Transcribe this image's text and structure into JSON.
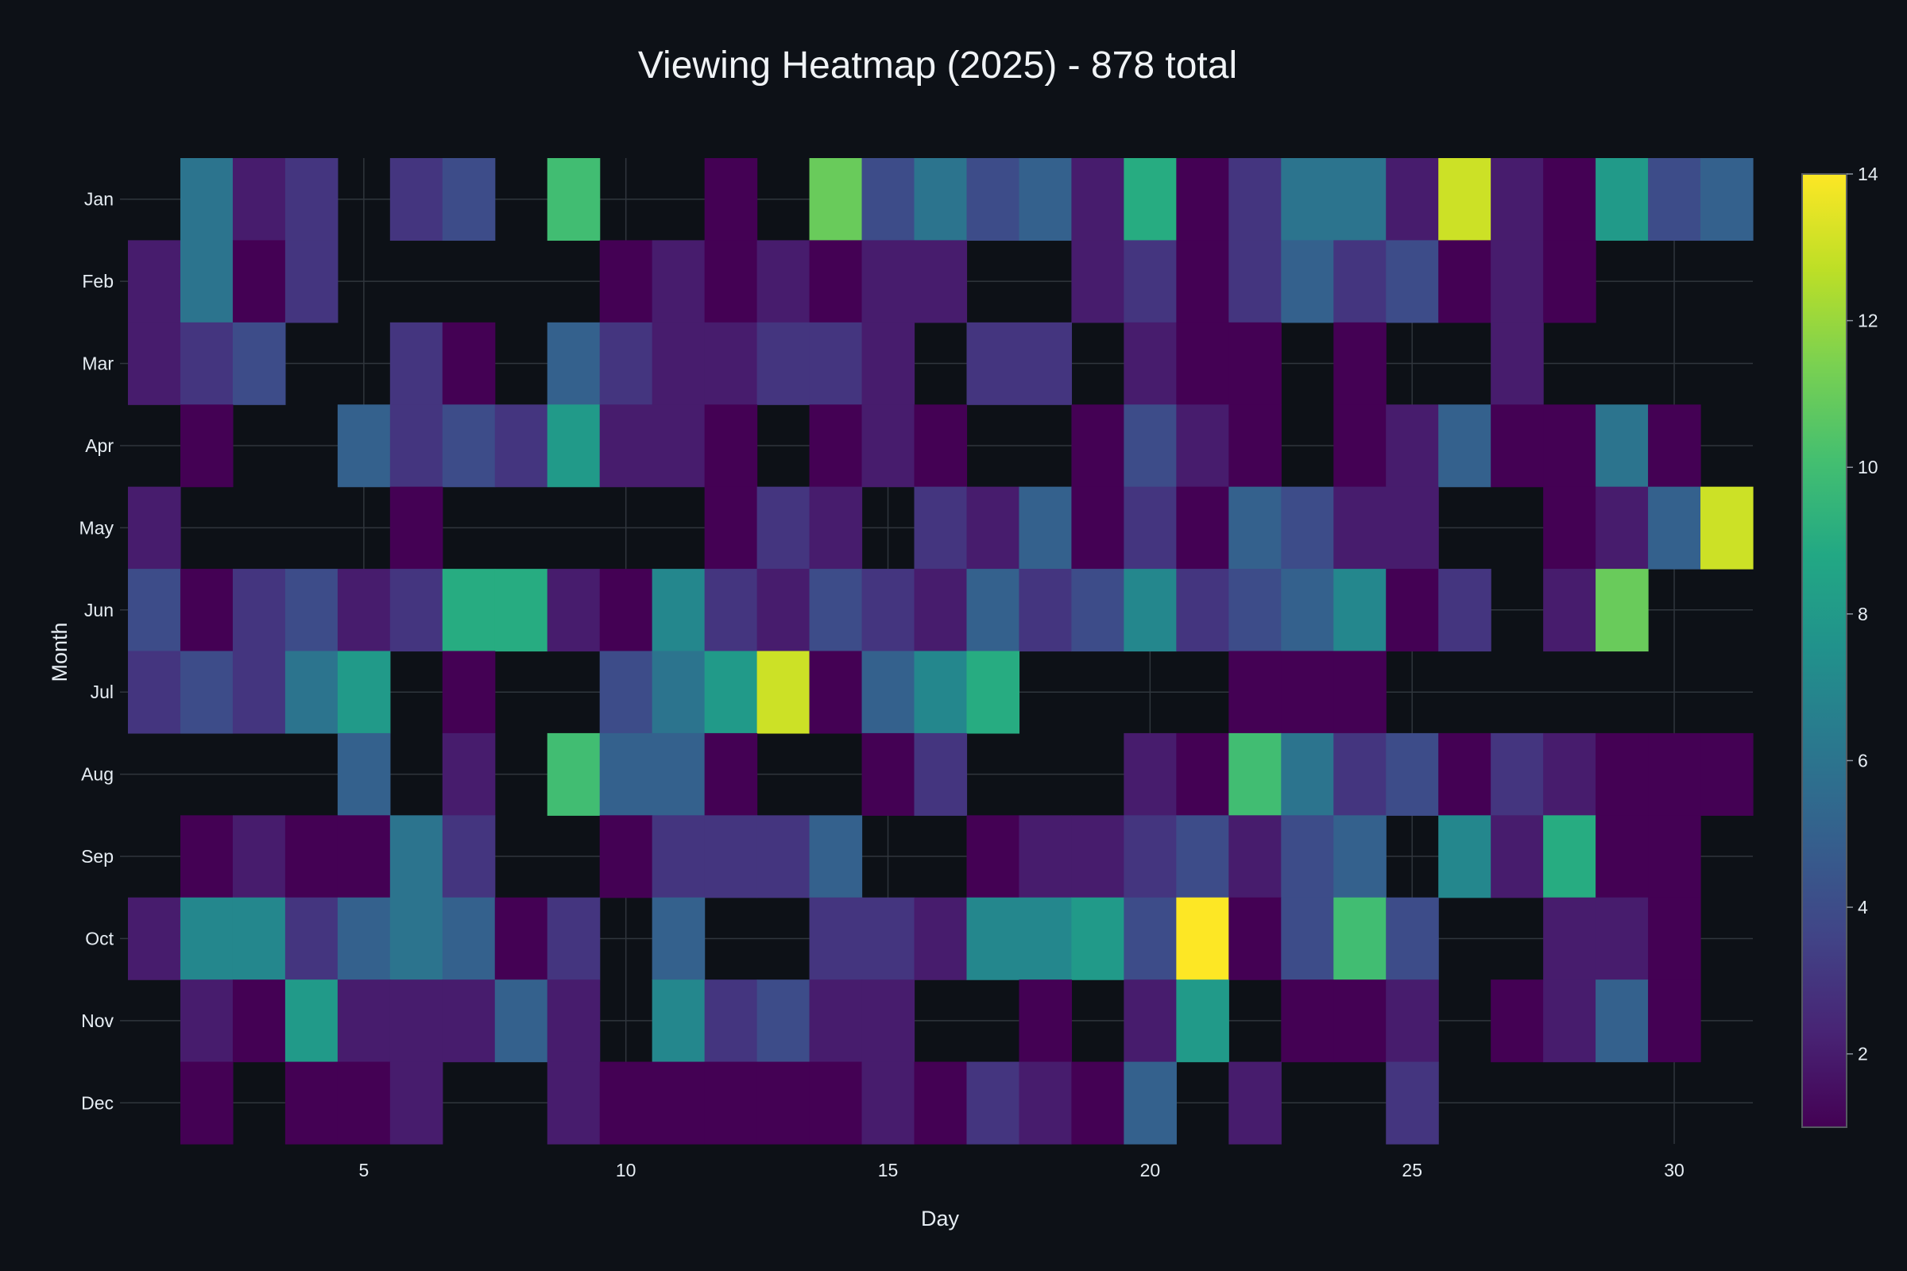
{
  "chart_data": {
    "type": "heatmap",
    "title": "Viewing Heatmap (2025) - 878 total",
    "xlabel": "Day",
    "ylabel": "Month",
    "x_ticks": [
      5,
      10,
      15,
      20,
      25,
      30
    ],
    "xlim": [
      0.5,
      31.5
    ],
    "months": [
      "Jan",
      "Feb",
      "Mar",
      "Apr",
      "May",
      "Jun",
      "Jul",
      "Aug",
      "Sep",
      "Oct",
      "Nov",
      "Dec"
    ],
    "days": [
      1,
      2,
      3,
      4,
      5,
      6,
      7,
      8,
      9,
      10,
      11,
      12,
      13,
      14,
      15,
      16,
      17,
      18,
      19,
      20,
      21,
      22,
      23,
      24,
      25,
      26,
      27,
      28,
      29,
      30,
      31
    ],
    "colorscale": "Viridis",
    "zmin": 1,
    "zmax": 14,
    "colorbar_ticks": [
      2,
      4,
      6,
      8,
      10,
      12,
      14
    ],
    "values": [
      [
        null,
        6,
        2,
        3,
        null,
        3,
        4,
        null,
        10,
        null,
        null,
        1,
        null,
        11,
        4,
        6,
        4,
        5,
        2,
        9,
        1,
        3,
        6,
        6,
        2,
        13,
        2,
        1,
        8,
        4,
        5
      ],
      [
        2,
        6,
        1,
        3,
        null,
        null,
        null,
        null,
        null,
        1,
        2,
        1,
        2,
        1,
        2,
        2,
        null,
        null,
        2,
        3,
        1,
        3,
        5,
        3,
        4,
        1,
        2,
        1,
        null,
        null,
        null
      ],
      [
        2,
        3,
        4,
        null,
        null,
        3,
        1,
        null,
        5,
        3,
        2,
        2,
        3,
        3,
        2,
        null,
        3,
        3,
        null,
        2,
        1,
        1,
        null,
        1,
        null,
        null,
        2,
        null,
        null,
        null,
        null
      ],
      [
        null,
        1,
        null,
        null,
        5,
        3,
        4,
        3,
        8,
        2,
        2,
        1,
        null,
        1,
        2,
        1,
        null,
        null,
        1,
        4,
        2,
        1,
        null,
        1,
        2,
        5,
        1,
        1,
        6,
        1,
        null
      ],
      [
        2,
        null,
        null,
        null,
        null,
        1,
        null,
        null,
        null,
        null,
        null,
        1,
        3,
        2,
        null,
        3,
        2,
        5,
        1,
        3,
        1,
        5,
        4,
        2,
        2,
        null,
        null,
        1,
        2,
        5,
        13
      ],
      [
        4,
        1,
        3,
        4,
        2,
        3,
        9,
        9,
        2,
        1,
        7,
        3,
        2,
        4,
        3,
        2,
        5,
        3,
        4,
        7,
        3,
        4,
        5,
        7,
        1,
        3,
        null,
        2,
        11,
        null,
        null
      ],
      [
        3,
        4,
        3,
        6,
        8,
        null,
        1,
        null,
        null,
        4,
        6,
        8,
        13,
        1,
        5,
        7,
        9,
        null,
        null,
        null,
        null,
        1,
        1,
        1,
        null,
        null,
        null,
        null,
        null,
        null,
        null
      ],
      [
        null,
        null,
        null,
        null,
        5,
        null,
        2,
        null,
        10,
        5,
        5,
        1,
        null,
        null,
        1,
        3,
        null,
        null,
        null,
        2,
        1,
        10,
        6,
        3,
        4,
        1,
        3,
        2,
        1,
        1,
        1
      ],
      [
        null,
        1,
        2,
        1,
        1,
        6,
        3,
        null,
        null,
        1,
        3,
        3,
        3,
        5,
        null,
        null,
        1,
        2,
        2,
        3,
        4,
        2,
        4,
        5,
        null,
        7,
        2,
        9,
        1,
        1,
        null
      ],
      [
        2,
        7,
        7,
        3,
        5,
        6,
        5,
        1,
        3,
        null,
        5,
        null,
        null,
        3,
        3,
        2,
        7,
        7,
        8,
        4,
        14,
        1,
        4,
        10,
        4,
        null,
        null,
        2,
        2,
        1,
        null
      ],
      [
        null,
        2,
        1,
        8,
        2,
        2,
        2,
        5,
        2,
        null,
        7,
        3,
        4,
        2,
        2,
        null,
        null,
        1,
        null,
        2,
        8,
        null,
        1,
        1,
        2,
        null,
        1,
        2,
        5,
        1,
        null
      ],
      [
        null,
        1,
        null,
        1,
        1,
        2,
        null,
        null,
        2,
        1,
        1,
        1,
        1,
        1,
        2,
        1,
        3,
        2,
        1,
        5,
        null,
        2,
        null,
        null,
        3,
        null,
        null,
        null,
        null,
        null,
        null
      ]
    ]
  }
}
